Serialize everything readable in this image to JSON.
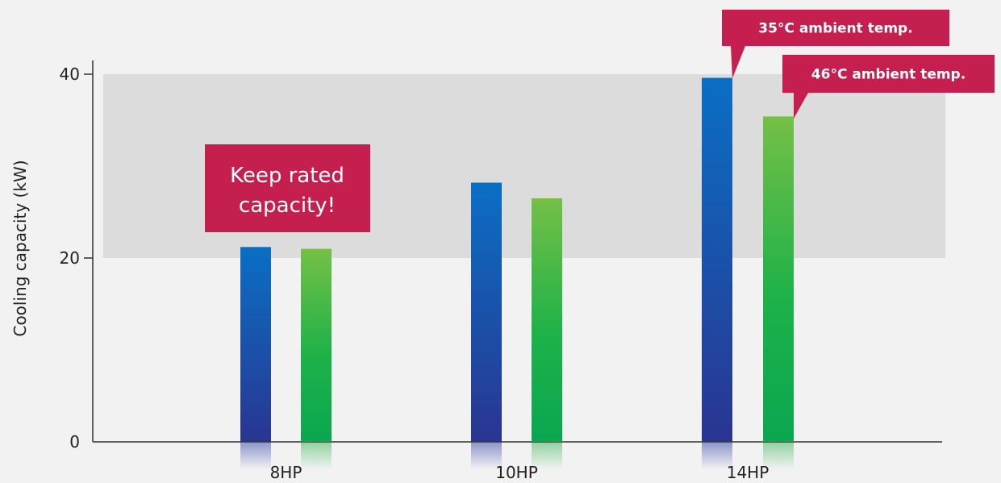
{
  "chart_data": {
    "type": "bar",
    "title": "",
    "xlabel": "",
    "ylabel": "Cooling capacity (kW)",
    "ylim": [
      0,
      46
    ],
    "yticks": [
      0,
      20,
      40
    ],
    "grid": false,
    "legend_placement": "top-right",
    "categories": [
      "8HP",
      "10HP",
      "14HP"
    ],
    "series": [
      {
        "name": "35°C ambient temp.",
        "color": "#1565c0",
        "values": [
          21.2,
          28.2,
          39.6
        ]
      },
      {
        "name": "46°C ambient temp.",
        "color": "#3cb84a",
        "values": [
          21.0,
          26.5,
          35.4
        ]
      }
    ],
    "highlight_band": [
      20,
      40
    ],
    "annotation": {
      "text": [
        "Keep rated",
        "capacity!"
      ],
      "color": "#c41f4e"
    }
  }
}
